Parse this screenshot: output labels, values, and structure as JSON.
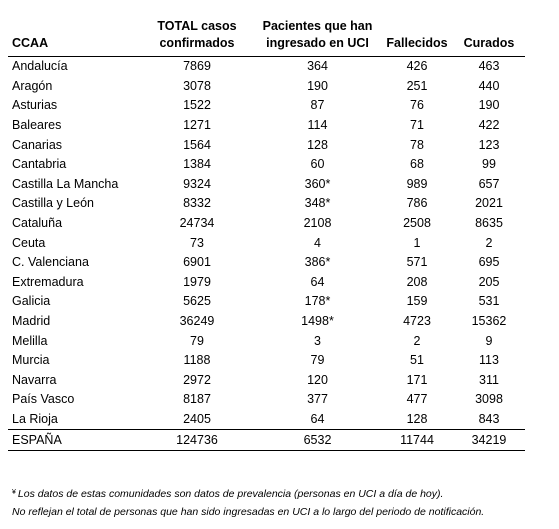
{
  "headers": [
    "CCAA",
    "TOTAL casos confirmados",
    "Pacientes que han ingresado en UCI",
    "Fallecidos",
    "Curados"
  ],
  "rows": [
    [
      "Andalucía",
      "7869",
      "364",
      "426",
      "463"
    ],
    [
      "Aragón",
      "3078",
      "190",
      "251",
      "440"
    ],
    [
      "Asturias",
      "1522",
      "87",
      "76",
      "190"
    ],
    [
      "Baleares",
      "1271",
      "114",
      "71",
      "422"
    ],
    [
      "Canarias",
      "1564",
      "128",
      "78",
      "123"
    ],
    [
      "Cantabria",
      "1384",
      "60",
      "68",
      "99"
    ],
    [
      "Castilla La Mancha",
      "9324",
      "360*",
      "989",
      "657"
    ],
    [
      "Castilla y León",
      "8332",
      "348*",
      "786",
      "2021"
    ],
    [
      "Cataluña",
      "24734",
      "2108",
      "2508",
      "8635"
    ],
    [
      "Ceuta",
      "73",
      "4",
      "1",
      "2"
    ],
    [
      "C. Valenciana",
      "6901",
      "386*",
      "571",
      "695"
    ],
    [
      "Extremadura",
      "1979",
      "64",
      "208",
      "205"
    ],
    [
      "Galicia",
      "5625",
      "178*",
      "159",
      "531"
    ],
    [
      "Madrid",
      "36249",
      "1498*",
      "4723",
      "15362"
    ],
    [
      "Melilla",
      "79",
      "3",
      "2",
      "9"
    ],
    [
      "Murcia",
      "1188",
      "79",
      "51",
      "113"
    ],
    [
      "Navarra",
      "2972",
      "120",
      "171",
      "311"
    ],
    [
      "País Vasco",
      "8187",
      "377",
      "477",
      "3098"
    ],
    [
      "La Rioja",
      "2405",
      "64",
      "128",
      "843"
    ]
  ],
  "total": [
    "ESPAÑA",
    "124736",
    "6532",
    "11744",
    "34219"
  ],
  "notes": {
    "mark": "¥",
    "line1": "Los datos de estas comunidades son datos de prevalencia (personas en UCI a día de hoy).",
    "line2": "No reflejan el total de personas que han sido ingresadas en UCI a lo largo del periodo de notificación."
  }
}
